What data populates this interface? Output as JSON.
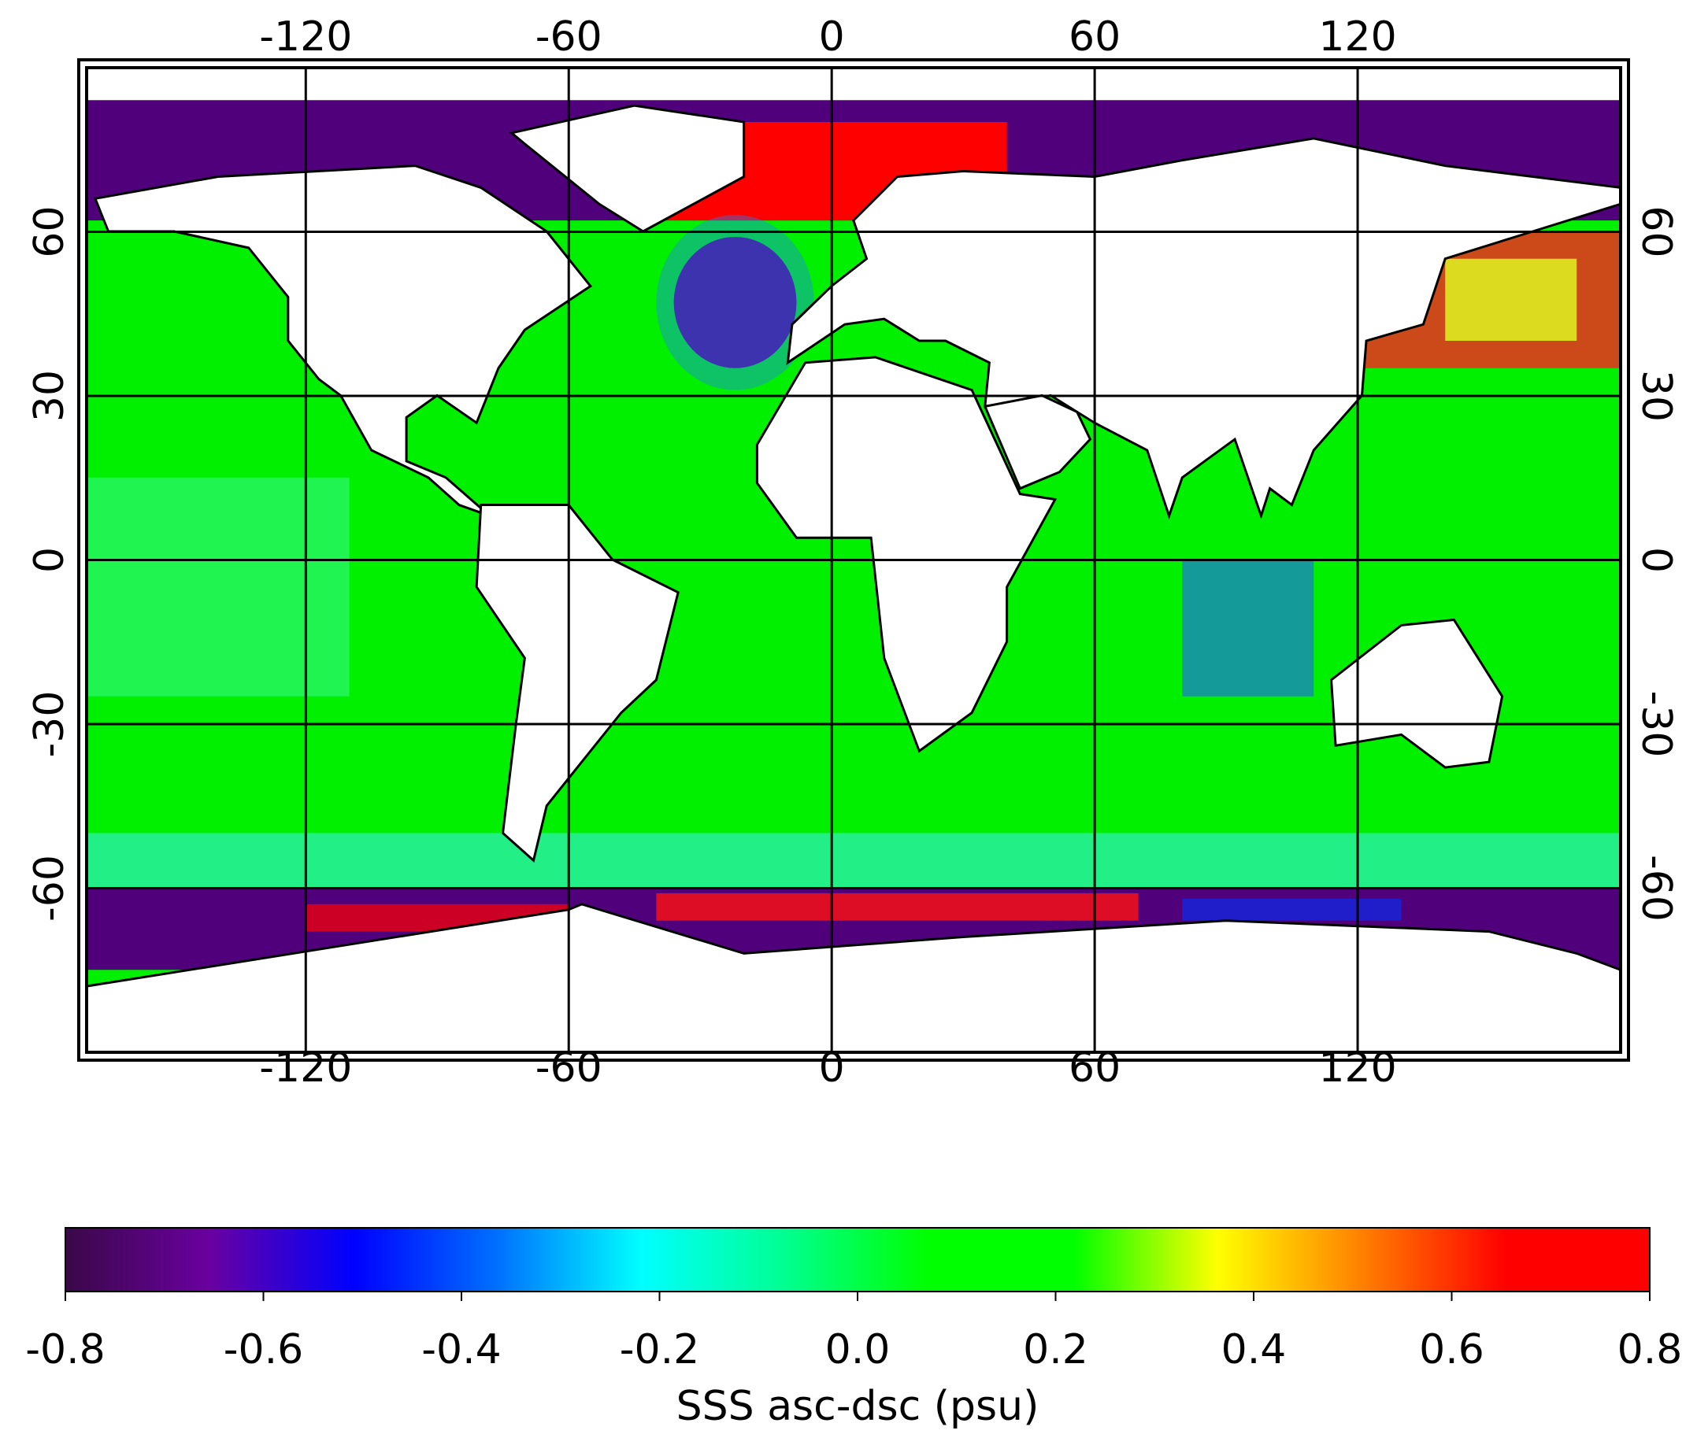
{
  "chart_data": {
    "type": "map",
    "xlim": [
      -170,
      180
    ],
    "ylim": [
      -90,
      90
    ],
    "xticks": [
      -120,
      -60,
      0,
      60,
      120
    ],
    "yticks": [
      -60,
      -30,
      0,
      30,
      60
    ],
    "grid": true,
    "colorbar": {
      "label": "SSS asc-dsc (psu)",
      "lim": [
        -0.8,
        0.8
      ],
      "ticks": [
        -0.8,
        -0.6,
        -0.4,
        -0.2,
        {
          "value": 0,
          "label": "0.0"
        },
        0.2,
        0.4,
        0.6,
        0.8
      ],
      "colors": [
        "#3a0848",
        "#6a00a0",
        "#0000ff",
        "#0070ff",
        "#00ffff",
        "#00ff90",
        "#00ff00",
        "#00ff00",
        "#ffff00",
        "#ff8000",
        "#ff0000",
        "#ff0000"
      ]
    }
  }
}
